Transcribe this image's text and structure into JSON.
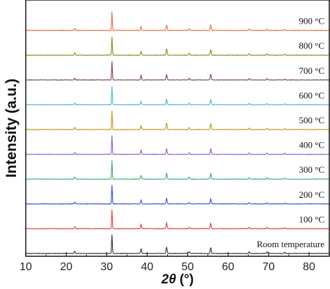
{
  "chart_data": {
    "type": "line",
    "title": "",
    "xlabel": "2θ (°)",
    "xlabel_parts": {
      "symbol": "2θ",
      "unit": "(°)"
    },
    "ylabel": "Intensity (a.u.)",
    "xlim": [
      10,
      85
    ],
    "x_ticks": [
      10,
      20,
      30,
      40,
      50,
      60,
      70,
      80
    ],
    "y_ticks": [],
    "grid": false,
    "legend": "none",
    "peak_positions_2theta": [
      22.1,
      31.3,
      38.5,
      44.8,
      50.4,
      55.7,
      65.2,
      69.6,
      74.0
    ],
    "series": [
      {
        "name": "900 °C",
        "color": "#e5703a",
        "peak_heights": [
          0.1,
          1.0,
          0.2,
          0.3,
          0.08,
          0.28,
          0.07,
          0.06,
          0.05
        ]
      },
      {
        "name": "800 °C",
        "color": "#8a8a20",
        "peak_heights": [
          0.12,
          1.0,
          0.2,
          0.35,
          0.1,
          0.3,
          0.08,
          0.07,
          0.06
        ]
      },
      {
        "name": "700 °C",
        "color": "#7a4848",
        "peak_heights": [
          0.1,
          1.0,
          0.25,
          0.3,
          0.08,
          0.3,
          0.08,
          0.07,
          0.05
        ]
      },
      {
        "name": "600 °C",
        "color": "#4fb3d5",
        "peak_heights": [
          0.1,
          1.0,
          0.2,
          0.3,
          0.08,
          0.28,
          0.07,
          0.06,
          0.05
        ]
      },
      {
        "name": "500 °C",
        "color": "#b59a1f",
        "peak_heights": [
          0.12,
          1.0,
          0.2,
          0.35,
          0.1,
          0.32,
          0.08,
          0.07,
          0.06
        ]
      },
      {
        "name": "400 °C",
        "color": "#8d5fc0",
        "peak_heights": [
          0.1,
          1.0,
          0.22,
          0.3,
          0.08,
          0.3,
          0.08,
          0.07,
          0.05
        ]
      },
      {
        "name": "300 °C",
        "color": "#3fae6e",
        "peak_heights": [
          0.12,
          1.0,
          0.2,
          0.32,
          0.1,
          0.3,
          0.08,
          0.07,
          0.06
        ]
      },
      {
        "name": "200 °C",
        "color": "#2f4fd0",
        "peak_heights": [
          0.1,
          1.0,
          0.2,
          0.3,
          0.08,
          0.28,
          0.07,
          0.06,
          0.05
        ]
      },
      {
        "name": "100 °C",
        "color": "#e03c3c",
        "peak_heights": [
          0.1,
          1.0,
          0.22,
          0.32,
          0.08,
          0.3,
          0.08,
          0.07,
          0.05
        ]
      },
      {
        "name": "Room temperature",
        "color": "#333333",
        "peak_heights": [
          0.12,
          1.0,
          0.25,
          0.35,
          0.1,
          0.33,
          0.09,
          0.08,
          0.06
        ]
      }
    ]
  }
}
